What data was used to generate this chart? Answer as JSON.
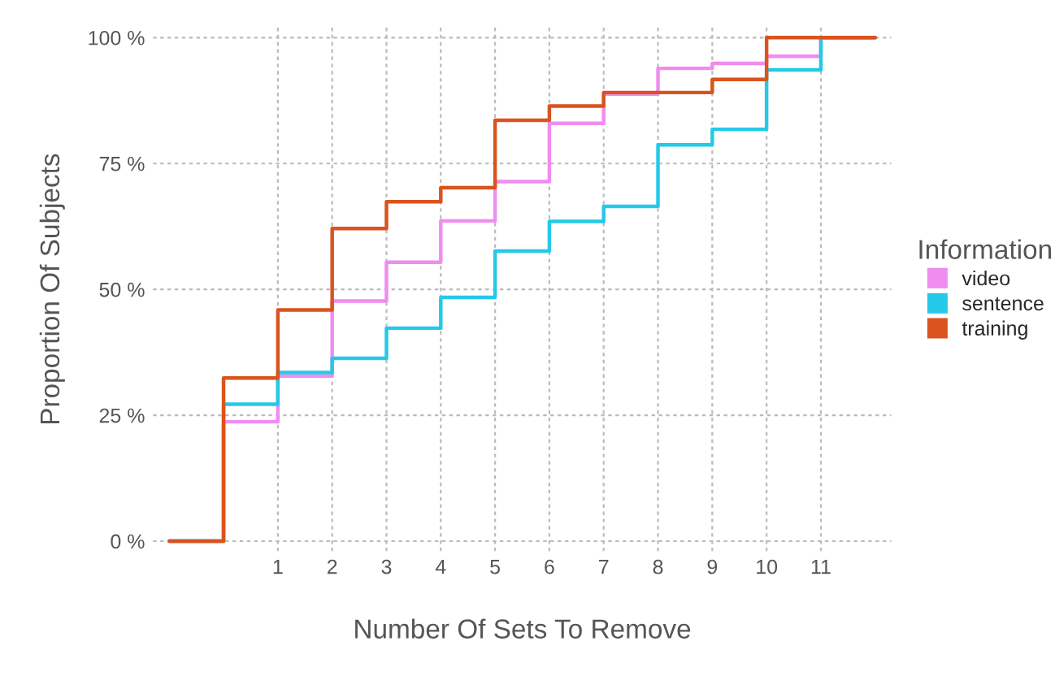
{
  "chart_data": {
    "type": "step",
    "xlabel": "Number Of Sets To Remove",
    "ylabel": "Proportion Of Subjects",
    "legend_title": "Information",
    "x": [
      -1,
      0,
      1,
      2,
      3,
      4,
      5,
      6,
      7,
      8,
      9,
      10,
      11,
      12
    ],
    "series": [
      {
        "name": "video",
        "color": "#f08cf0",
        "values": [
          0,
          23.7,
          32.8,
          47.7,
          55.4,
          63.6,
          71.4,
          83.0,
          88.8,
          93.9,
          94.9,
          96.3,
          100,
          100
        ]
      },
      {
        "name": "sentence",
        "color": "#25c9e8",
        "values": [
          0,
          27.2,
          33.5,
          36.3,
          42.3,
          48.4,
          57.6,
          63.5,
          66.5,
          78.7,
          81.8,
          93.6,
          100,
          100
        ]
      },
      {
        "name": "training",
        "color": "#d9541e",
        "values": [
          0,
          32.4,
          45.9,
          62.1,
          67.4,
          70.2,
          83.6,
          86.4,
          89.1,
          89.1,
          91.7,
          100,
          100,
          100
        ]
      }
    ],
    "xlim": [
      -1.3,
      12.3
    ],
    "ylim": [
      -2,
      102
    ],
    "xticks": [
      1,
      2,
      3,
      4,
      5,
      6,
      7,
      8,
      9,
      10,
      11
    ],
    "yticks": [
      {
        "value": 0,
        "label": "0 %"
      },
      {
        "value": 25,
        "label": "25 %"
      },
      {
        "value": 50,
        "label": "50 %"
      },
      {
        "value": 75,
        "label": "75 %"
      },
      {
        "value": 100,
        "label": "100 %"
      }
    ],
    "grid": true,
    "legend": "right",
    "line_style": "solid",
    "marker": "none"
  }
}
